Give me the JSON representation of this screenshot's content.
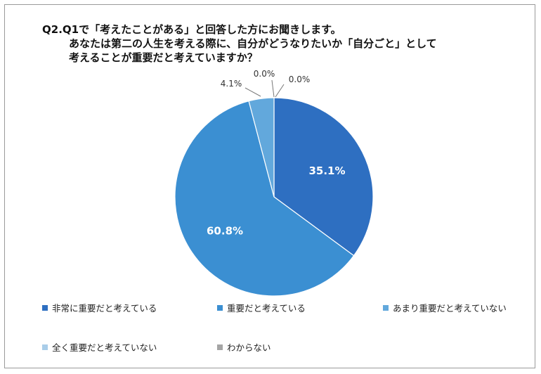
{
  "title": {
    "line1": "Q2.Q1で「考えたことがある」と回答した方にお聞きします。",
    "line2": "あなたは第二の人生を考える際に、自分がどうなりたいか「自分ごと」として",
    "line3": "考えることが重要だと考えていますか？"
  },
  "chart_data": {
    "type": "pie",
    "slices": [
      {
        "label": "非常に重要だと考えている",
        "value": 35.1,
        "value_label": "35.1%",
        "color": "#2e6fc1"
      },
      {
        "label": "重要だと考えている",
        "value": 60.8,
        "value_label": "60.8%",
        "color": "#3b8fd2"
      },
      {
        "label": "あまり重要だと考えていない",
        "value": 4.1,
        "value_label": "4.1%",
        "color": "#62a8dc"
      },
      {
        "label": "全く重要だと考えていない",
        "value": 0.0,
        "value_label": "0.0%",
        "color": "#a9cde9"
      },
      {
        "label": "わからない",
        "value": 0.0,
        "value_label": "0.0%",
        "color": "#a5a5a5"
      }
    ],
    "start_angle": "12 o'clock",
    "direction": "clockwise",
    "legend_placement": "bottom"
  }
}
